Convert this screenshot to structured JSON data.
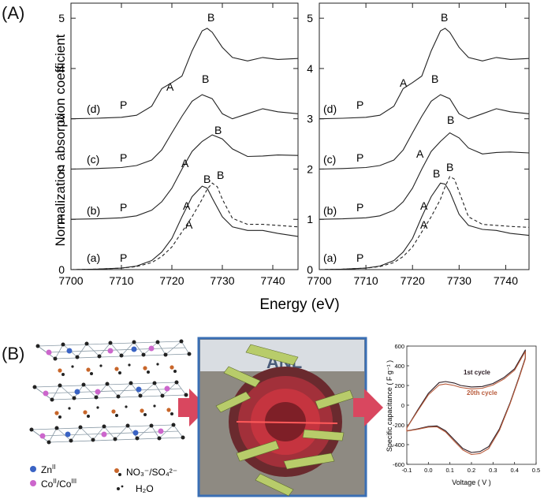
{
  "panel_a_label": "(A)",
  "panel_b_label": "(B)",
  "chart_data": [
    {
      "type": "line",
      "title": "",
      "xlabel": "Energy (eV)",
      "ylabel": "Normalization absorption coefficient",
      "xlim": [
        7700,
        7745
      ],
      "ylim": [
        0,
        5.3
      ],
      "x_ticks": [
        7700,
        7710,
        7720,
        7730,
        7740
      ],
      "y_ticks": [
        0,
        1,
        2,
        3,
        4,
        5
      ],
      "curve_labels": [
        "(a)",
        "(b)",
        "(c)",
        "(d)"
      ],
      "annotations": [
        "P",
        "A",
        "B"
      ],
      "series": [
        {
          "name": "(a) solid",
          "x": [
            7700,
            7705,
            7710,
            7713,
            7716,
            7718,
            7720,
            7722,
            7724,
            7726,
            7727,
            7728,
            7730,
            7732,
            7735,
            7738,
            7741,
            7745
          ],
          "y": [
            0.0,
            0.01,
            0.03,
            0.07,
            0.18,
            0.35,
            0.62,
            1.05,
            1.45,
            1.66,
            1.62,
            1.42,
            1.05,
            0.85,
            0.78,
            0.78,
            0.72,
            0.66
          ]
        },
        {
          "name": "(a) dashed",
          "x": [
            7700,
            7705,
            7710,
            7713,
            7716,
            7718,
            7720,
            7722,
            7724,
            7726,
            7727,
            7728,
            7729,
            7730,
            7732,
            7735,
            7738,
            7741,
            7745
          ],
          "y": [
            0.0,
            0.01,
            0.03,
            0.06,
            0.14,
            0.26,
            0.45,
            0.75,
            1.05,
            1.4,
            1.6,
            1.72,
            1.65,
            1.4,
            1.02,
            0.9,
            0.9,
            0.88,
            0.85
          ]
        },
        {
          "name": "(b)",
          "x": [
            7700,
            7705,
            7710,
            7713,
            7716,
            7718,
            7720,
            7722,
            7724,
            7726,
            7728,
            7730,
            7732,
            7735,
            7738,
            7741,
            7745
          ],
          "y": [
            1.0,
            1.01,
            1.03,
            1.07,
            1.18,
            1.35,
            1.62,
            2.0,
            2.35,
            2.55,
            2.68,
            2.6,
            2.4,
            2.25,
            2.26,
            2.28,
            2.27
          ]
        },
        {
          "name": "(c)",
          "x": [
            7700,
            7705,
            7710,
            7713,
            7716,
            7718,
            7720,
            7722,
            7724,
            7726,
            7728,
            7730,
            7732,
            7735,
            7738,
            7741,
            7745
          ],
          "y": [
            2.0,
            2.01,
            2.03,
            2.07,
            2.18,
            2.38,
            2.72,
            3.05,
            3.35,
            3.48,
            3.4,
            3.1,
            3.0,
            3.1,
            3.2,
            3.14,
            3.1
          ]
        },
        {
          "name": "(d)",
          "x": [
            7700,
            7705,
            7710,
            7713,
            7716,
            7718,
            7720,
            7722,
            7724,
            7726,
            7727,
            7728,
            7730,
            7732,
            7735,
            7738,
            7741,
            7745
          ],
          "y": [
            3.0,
            3.01,
            3.03,
            3.07,
            3.25,
            3.6,
            3.72,
            3.85,
            4.35,
            4.75,
            4.8,
            4.72,
            4.42,
            4.22,
            4.15,
            4.22,
            4.18,
            4.2
          ]
        }
      ]
    },
    {
      "type": "line",
      "title": "",
      "xlabel": "Energy (eV)",
      "ylabel": "",
      "xlim": [
        7700,
        7745
      ],
      "ylim": [
        0,
        5.3
      ],
      "x_ticks": [
        7700,
        7710,
        7720,
        7730,
        7740
      ],
      "y_ticks": [
        0,
        1,
        2,
        3,
        4,
        5
      ],
      "curve_labels": [
        "(a)",
        "(b)",
        "(c)",
        "(d)"
      ],
      "annotations": [
        "P",
        "A",
        "B"
      ],
      "series": [
        {
          "name": "(a) solid",
          "x": [
            7700,
            7705,
            7710,
            7713,
            7716,
            7718,
            7720,
            7722,
            7724,
            7726,
            7727,
            7728,
            7730,
            7732,
            7735,
            7738,
            7741,
            7745
          ],
          "y": [
            0.0,
            0.01,
            0.03,
            0.07,
            0.18,
            0.35,
            0.62,
            1.05,
            1.45,
            1.72,
            1.7,
            1.55,
            1.1,
            0.88,
            0.8,
            0.78,
            0.72,
            0.68
          ]
        },
        {
          "name": "(a) dashed",
          "x": [
            7700,
            7705,
            7710,
            7713,
            7716,
            7718,
            7720,
            7722,
            7724,
            7726,
            7727,
            7728,
            7729,
            7730,
            7732,
            7735,
            7738,
            7741,
            7745
          ],
          "y": [
            0.0,
            0.01,
            0.03,
            0.06,
            0.14,
            0.26,
            0.45,
            0.75,
            1.05,
            1.4,
            1.65,
            1.85,
            1.8,
            1.55,
            1.05,
            0.9,
            0.88,
            0.86,
            0.84
          ]
        },
        {
          "name": "(b)",
          "x": [
            7700,
            7705,
            7710,
            7713,
            7716,
            7718,
            7720,
            7722,
            7724,
            7726,
            7728,
            7730,
            7732,
            7735,
            7738,
            7741,
            7745
          ],
          "y": [
            1.0,
            1.01,
            1.03,
            1.07,
            1.18,
            1.35,
            1.62,
            2.0,
            2.35,
            2.55,
            2.72,
            2.62,
            2.42,
            2.3,
            2.33,
            2.34,
            2.32
          ]
        },
        {
          "name": "(c)",
          "x": [
            7700,
            7705,
            7710,
            7713,
            7716,
            7718,
            7720,
            7722,
            7724,
            7726,
            7728,
            7730,
            7732,
            7735,
            7738,
            7741,
            7745
          ],
          "y": [
            2.0,
            2.01,
            2.03,
            2.07,
            2.18,
            2.38,
            2.72,
            3.05,
            3.35,
            3.48,
            3.4,
            3.1,
            3.0,
            3.1,
            3.2,
            3.14,
            3.1
          ]
        },
        {
          "name": "(d)",
          "x": [
            7700,
            7705,
            7710,
            7713,
            7716,
            7718,
            7720,
            7722,
            7724,
            7726,
            7727,
            7728,
            7730,
            7732,
            7735,
            7738,
            7741,
            7745
          ],
          "y": [
            3.0,
            3.01,
            3.03,
            3.07,
            3.25,
            3.6,
            3.72,
            3.85,
            4.35,
            4.75,
            4.8,
            4.72,
            4.42,
            4.22,
            4.15,
            4.22,
            4.18,
            4.2
          ]
        }
      ]
    },
    {
      "type": "line",
      "title": "",
      "xlabel": "Voltage ( V )",
      "ylabel": "Specific capacitance ( F g⁻¹ )",
      "xlim": [
        -0.1,
        0.5
      ],
      "ylim": [
        -600,
        600
      ],
      "x_ticks": [
        "-0.1",
        "0.0",
        "0.1",
        "0.2",
        "0.3",
        "0.4",
        "0.5"
      ],
      "y_ticks": [
        "-600",
        "-400",
        "-200",
        "0",
        "200",
        "400",
        "600"
      ],
      "series": [
        {
          "name": "1st cycle",
          "color": "#2a1a22",
          "x": [
            -0.1,
            -0.05,
            0.0,
            0.05,
            0.08,
            0.12,
            0.15,
            0.2,
            0.25,
            0.3,
            0.35,
            0.4,
            0.45,
            0.45,
            0.42,
            0.38,
            0.33,
            0.28,
            0.24,
            0.2,
            0.16,
            0.12,
            0.08,
            0.04,
            0.0,
            -0.05,
            -0.1
          ],
          "y": [
            -230,
            -50,
            120,
            230,
            240,
            225,
            200,
            185,
            190,
            220,
            280,
            370,
            560,
            480,
            280,
            30,
            -240,
            -420,
            -470,
            -480,
            -440,
            -350,
            -260,
            -210,
            -215,
            -240,
            -260
          ]
        },
        {
          "name": "20th cycle",
          "color": "#b85a3a",
          "x": [
            -0.1,
            -0.05,
            0.0,
            0.05,
            0.08,
            0.12,
            0.15,
            0.2,
            0.25,
            0.3,
            0.35,
            0.4,
            0.45,
            0.45,
            0.42,
            0.38,
            0.33,
            0.28,
            0.24,
            0.2,
            0.16,
            0.12,
            0.08,
            0.04,
            0.0,
            -0.05,
            -0.1
          ],
          "y": [
            -230,
            -60,
            105,
            205,
            215,
            200,
            180,
            165,
            172,
            205,
            265,
            355,
            545,
            470,
            270,
            20,
            -255,
            -440,
            -490,
            -500,
            -455,
            -365,
            -272,
            -220,
            -222,
            -245,
            -262
          ]
        }
      ],
      "legend": [
        "1st cycle",
        "20th cycle"
      ]
    }
  ],
  "legend_b": {
    "zn": "Zn",
    "zn_sup": "II",
    "co": "Co",
    "co_sup1": "II",
    "co_mid": "/Co",
    "co_sup2": "III",
    "anion": "NO₃⁻/SO₄²⁻",
    "water": "H₂O"
  },
  "photo_watermark": "ANL",
  "colors": {
    "arrow": "#d9475f",
    "frame": "#3a6fb5",
    "zn": "#3a63c4",
    "co": "#cc66cc",
    "anion": "#c8662a"
  }
}
